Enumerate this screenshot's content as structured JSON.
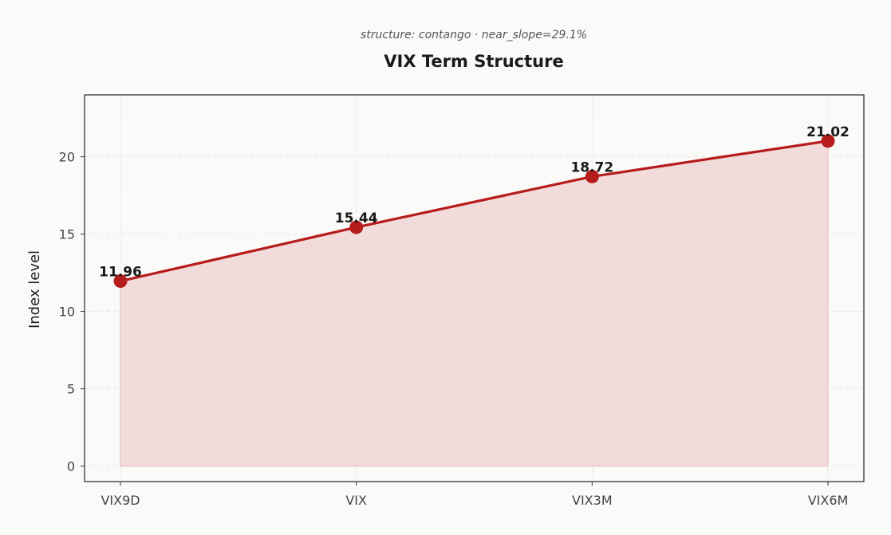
{
  "chart_data": {
    "type": "line",
    "subtitle": "structure: contango · near_slope=29.1%",
    "title": "VIX Term Structure",
    "xlabel": "",
    "ylabel": "Index level",
    "categories": [
      "VIX9D",
      "VIX",
      "VIX3M",
      "VIX6M"
    ],
    "series": [
      {
        "values": [
          11.96,
          15.44,
          18.72,
          21.02
        ]
      }
    ],
    "data_labels": [
      "11.96",
      "15.44",
      "18.72",
      "21.02"
    ],
    "yticks": [
      "0",
      "5",
      "10",
      "15",
      "20"
    ],
    "ylim": [
      -1,
      24
    ],
    "area_fill": true,
    "grid": true,
    "colors": {
      "line": "#b71c1c",
      "marker": "#b71c1c",
      "fill": "#f2dcdb",
      "axis": "#333333",
      "grid": "#e6e6e6"
    }
  }
}
